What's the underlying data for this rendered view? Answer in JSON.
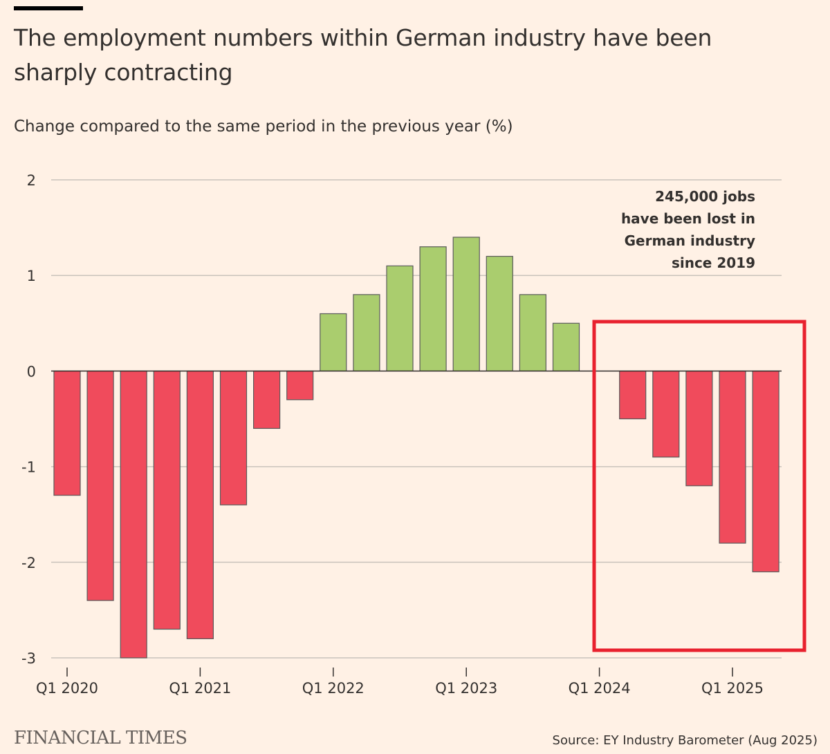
{
  "title": "The employment numbers within German industry have been sharply contracting",
  "subtitle": "Change compared to the same period in the previous year (%)",
  "annotation": [
    "245,000 jobs",
    "have been lost in",
    "German industry",
    "since 2019"
  ],
  "brand": "FINANCIAL TIMES",
  "source": "Source: EY Industry Barometer (Aug 2025)",
  "colors": {
    "background": "#fff1e5",
    "positive": "#aacd6e",
    "negative": "#f04b5c",
    "bar_outline": "#5a5a5a",
    "highlight_box": "#e8212e",
    "grid": "#c9c2bb"
  },
  "chart_data": {
    "type": "bar",
    "ylabel": "Change compared to the same period in the previous year (%)",
    "ylim": [
      -3,
      2
    ],
    "yticks": [
      "2",
      "1",
      "0",
      "-1",
      "-2",
      "-3"
    ],
    "ytick_values": [
      2,
      1,
      0,
      -1,
      -2,
      -3
    ],
    "categories": [
      "Q1 2020",
      "Q2 2020",
      "Q3 2020",
      "Q4 2020",
      "Q1 2021",
      "Q2 2021",
      "Q3 2021",
      "Q4 2021",
      "Q1 2022",
      "Q2 2022",
      "Q3 2022",
      "Q4 2022",
      "Q1 2023",
      "Q2 2023",
      "Q3 2023",
      "Q4 2023",
      "Q1 2024",
      "Q2 2024",
      "Q3 2024",
      "Q4 2024",
      "Q1 2025",
      "Q2 2025"
    ],
    "values": [
      -1.3,
      -2.4,
      -3.0,
      -2.7,
      -2.8,
      -1.4,
      -0.6,
      -0.3,
      0.6,
      0.8,
      1.1,
      1.3,
      1.4,
      1.2,
      0.8,
      0.5,
      0,
      -0.5,
      -0.9,
      -1.2,
      -1.8,
      -2.1
    ],
    "xtick_labels": [
      "Q1 2020",
      "Q1 2021",
      "Q1 2022",
      "Q1 2023",
      "Q1 2024",
      "Q1 2025"
    ],
    "xtick_positions": [
      0,
      4,
      8,
      12,
      16,
      20
    ],
    "highlight_range": [
      "Q1 2024",
      "Q2 2025"
    ],
    "grid": true
  }
}
